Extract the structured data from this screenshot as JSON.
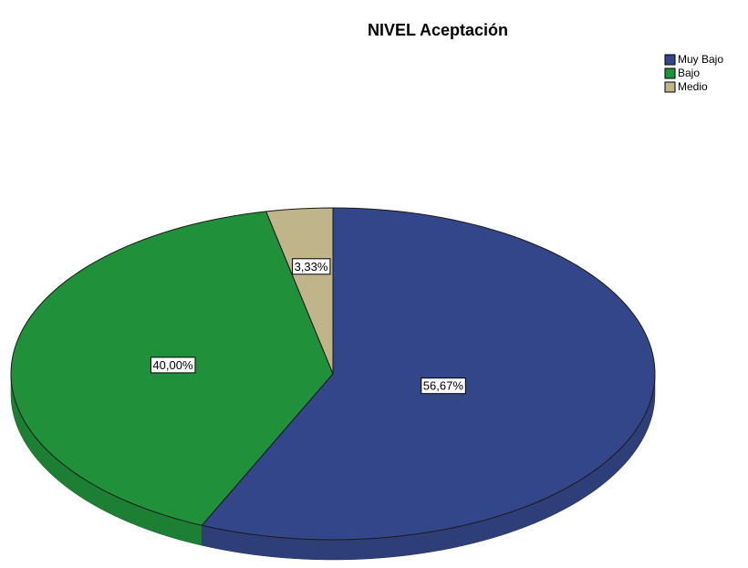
{
  "chart_data": {
    "type": "pie",
    "title": "NIVEL Aceptación",
    "categories": [
      "Muy Bajo",
      "Bajo",
      "Medio"
    ],
    "values": [
      56.67,
      40.0,
      3.33
    ],
    "value_labels": [
      "56,67%",
      "40,00%",
      "3,33%"
    ],
    "colors": [
      "#33468a",
      "#21903a",
      "#bfb48a"
    ],
    "legend": "top-right"
  }
}
